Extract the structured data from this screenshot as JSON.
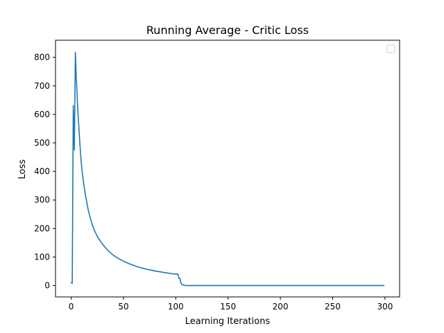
{
  "chart_data": {
    "type": "line",
    "title": "Running Average - Critic Loss",
    "xlabel": "Learning Iterations",
    "ylabel": "Loss",
    "xlim": [
      -15,
      314
    ],
    "ylim": [
      -40,
      860
    ],
    "xticks": [
      0,
      50,
      100,
      150,
      200,
      250,
      300
    ],
    "yticks": [
      0,
      100,
      200,
      300,
      400,
      500,
      600,
      700,
      800
    ],
    "grid": false,
    "legend": {
      "placement": "top-right",
      "entries": []
    },
    "series": [
      {
        "color": "#1f77b4",
        "x": [
          0,
          1,
          2,
          3,
          4,
          5,
          6,
          7,
          8,
          9,
          10,
          12,
          14,
          16,
          18,
          20,
          22,
          25,
          28,
          30,
          35,
          40,
          45,
          50,
          55,
          60,
          65,
          70,
          75,
          80,
          85,
          90,
          95,
          100,
          101,
          102,
          103,
          104,
          105,
          106,
          107,
          108,
          110,
          115,
          120,
          150,
          200,
          250,
          299
        ],
        "y": [
          10,
          8,
          631,
          475,
          818,
          720,
          640,
          575,
          515,
          460,
          415,
          355,
          310,
          270,
          240,
          215,
          195,
          172,
          155,
          145,
          123,
          107,
          95,
          85,
          77,
          70,
          64,
          59,
          55,
          51,
          48,
          45,
          42,
          40,
          40,
          40,
          25,
          25,
          8,
          3,
          2,
          1,
          0,
          0,
          0,
          0,
          0,
          0,
          0
        ]
      }
    ]
  },
  "colors": {
    "series_line": "#1f77b4",
    "axes": "#000000",
    "legend_border": "#cccccc",
    "background": "#ffffff"
  }
}
